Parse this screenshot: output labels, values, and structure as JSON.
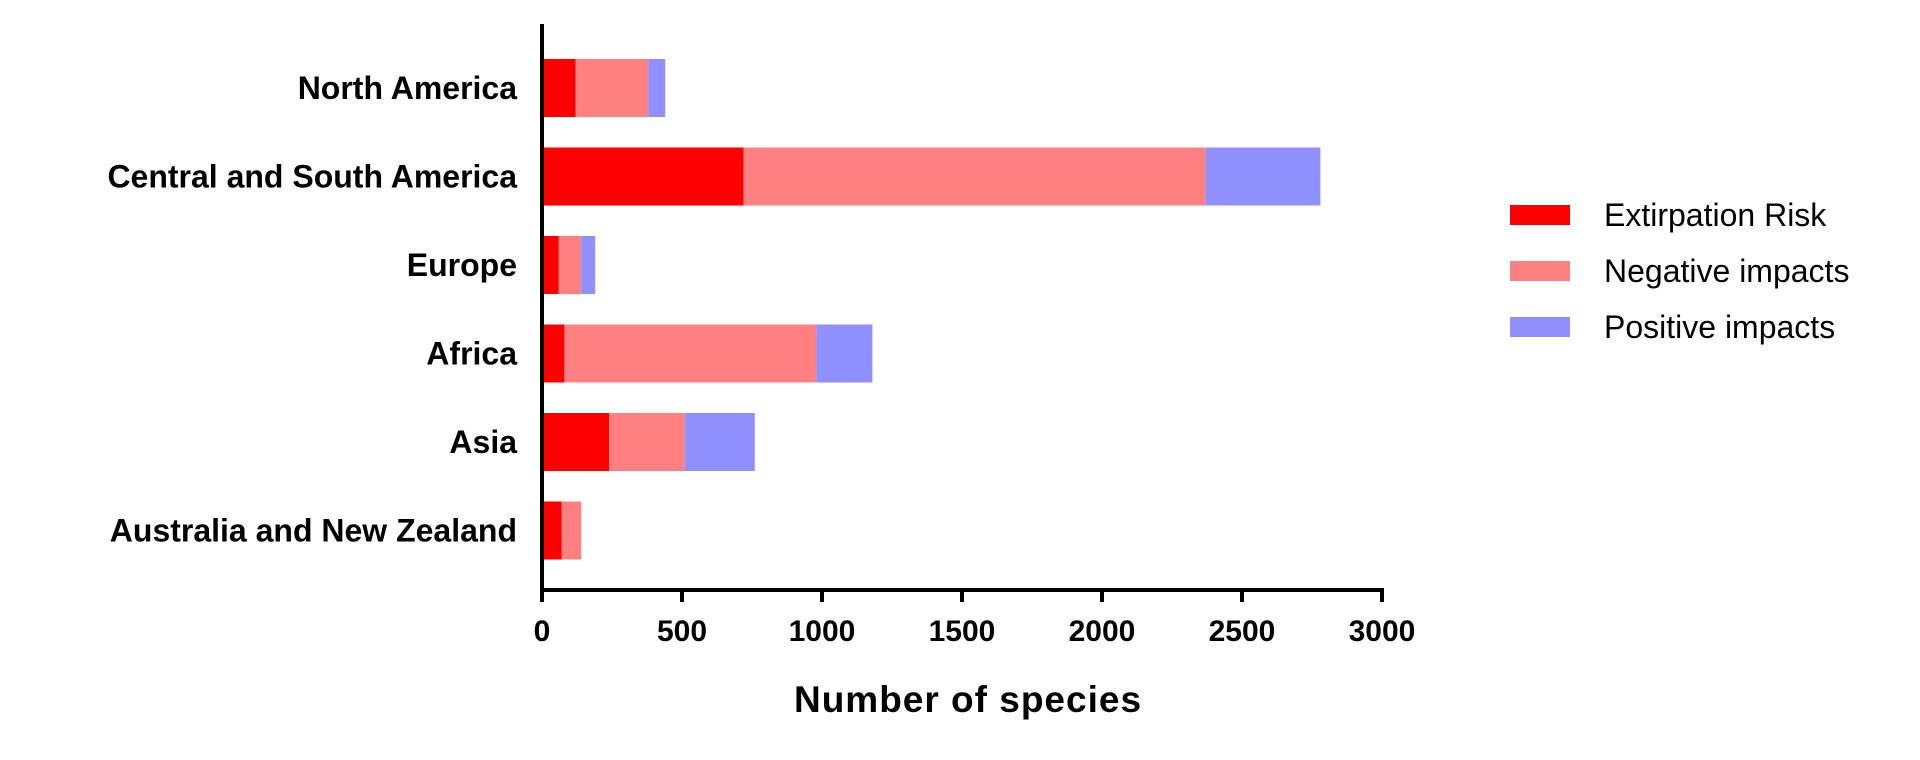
{
  "chart_data": {
    "type": "bar",
    "orientation": "horizontal",
    "stacked": true,
    "categories": [
      "North America",
      "Central and South America",
      "Europe",
      "Africa",
      "Asia",
      "Australia and New Zealand"
    ],
    "series": [
      {
        "name": "Extirpation Risk",
        "color": "#ff0000",
        "values": [
          120,
          720,
          60,
          80,
          240,
          70
        ]
      },
      {
        "name": "Negative impacts",
        "color": "#ff8080",
        "values": [
          260,
          1650,
          80,
          900,
          270,
          70
        ]
      },
      {
        "name": "Positive impacts",
        "color": "#8f8ffe",
        "values": [
          60,
          410,
          50,
          200,
          250,
          0
        ]
      }
    ],
    "xlabel": "Number of species",
    "ylabel": "",
    "title": "",
    "xlim": [
      0,
      3000
    ],
    "xticks": [
      "0",
      "500",
      "1000",
      "1500",
      "2000",
      "2500",
      "3000"
    ],
    "grid": false,
    "legend_position": "right"
  }
}
